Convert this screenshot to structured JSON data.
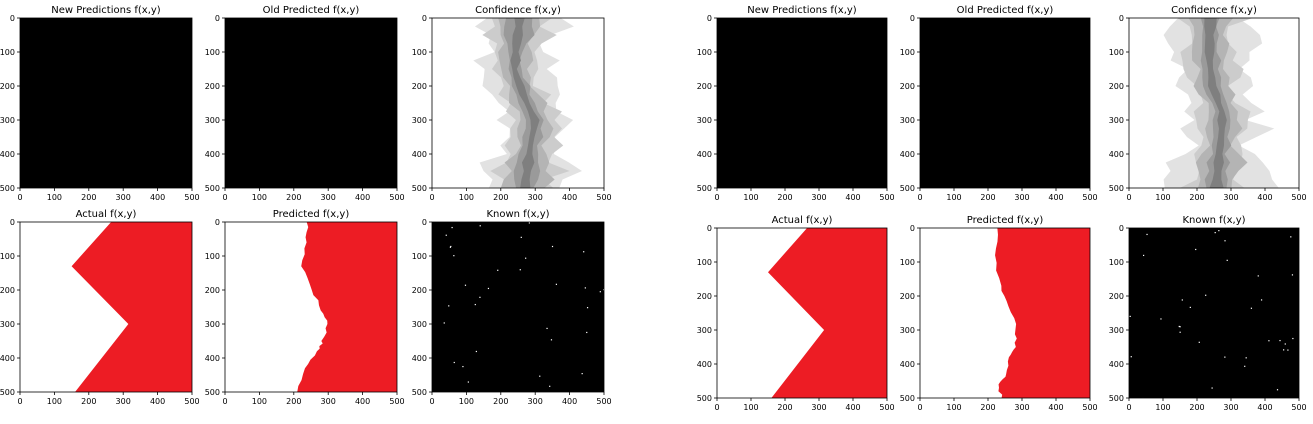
{
  "figures": [
    {
      "panels": [
        {
          "title": "New Predictions f(x,y)",
          "kind": "black"
        },
        {
          "title": "Old Predicted f(x,y)",
          "kind": "black"
        },
        {
          "title": "Confidence f(x,y)",
          "kind": "confidence",
          "variant": 0
        },
        {
          "title": "Actual f(x,y)",
          "kind": "actual"
        },
        {
          "title": "Predicted f(x,y)",
          "kind": "predicted",
          "variant": 0
        },
        {
          "title": "Known f(x,y)",
          "kind": "known",
          "variant": 0
        }
      ]
    },
    {
      "panels": [
        {
          "title": "New Predictions f(x,y)",
          "kind": "black"
        },
        {
          "title": "Old Predicted f(x,y)",
          "kind": "black"
        },
        {
          "title": "Confidence f(x,y)",
          "kind": "confidence",
          "variant": 1
        },
        {
          "title": "Actual f(x,y)",
          "kind": "actual"
        },
        {
          "title": "Predicted f(x,y)",
          "kind": "predicted",
          "variant": 1
        },
        {
          "title": "Known f(x,y)",
          "kind": "known",
          "variant": 1
        }
      ]
    }
  ],
  "chart_data": [
    {
      "type": "heatmap",
      "title": "Actual f(x,y)",
      "xlim": [
        0,
        500
      ],
      "ylim": [
        500,
        0
      ],
      "xticks": [
        0,
        100,
        200,
        300,
        400,
        500
      ],
      "yticks": [
        0,
        100,
        200,
        300,
        400,
        500
      ],
      "region_color": "#ed1c24",
      "boundary": [
        [
          265,
          0
        ],
        [
          150,
          130
        ],
        [
          315,
          300
        ],
        [
          160,
          500
        ]
      ]
    },
    {
      "type": "heatmap",
      "title": "Predicted f(x,y)",
      "xlim": [
        0,
        500
      ],
      "ylim": [
        500,
        0
      ],
      "region_color": "#ed1c24",
      "boundary_left": [
        [
          240,
          0
        ],
        [
          235,
          60
        ],
        [
          225,
          130
        ],
        [
          255,
          200
        ],
        [
          280,
          260
        ],
        [
          300,
          300
        ],
        [
          285,
          350
        ],
        [
          270,
          380
        ],
        [
          230,
          430
        ],
        [
          210,
          500
        ]
      ],
      "boundary_right": [
        [
          230,
          0
        ],
        [
          222,
          80
        ],
        [
          235,
          170
        ],
        [
          260,
          230
        ],
        [
          285,
          300
        ],
        [
          280,
          350
        ],
        [
          260,
          380
        ],
        [
          255,
          430
        ],
        [
          230,
          460
        ],
        [
          240,
          500
        ]
      ]
    },
    {
      "type": "heatmap",
      "title": "Confidence f(x,y)",
      "xlim": [
        0,
        500
      ],
      "ylim": [
        500,
        0
      ],
      "colormap": "greys"
    },
    {
      "type": "heatmap",
      "title": "Known f(x,y)",
      "xlim": [
        0,
        500
      ],
      "ylim": [
        500,
        0
      ],
      "colormap": "binary"
    }
  ],
  "colors": {
    "red": "#ed1c24",
    "black": "#000000",
    "white": "#ffffff"
  }
}
